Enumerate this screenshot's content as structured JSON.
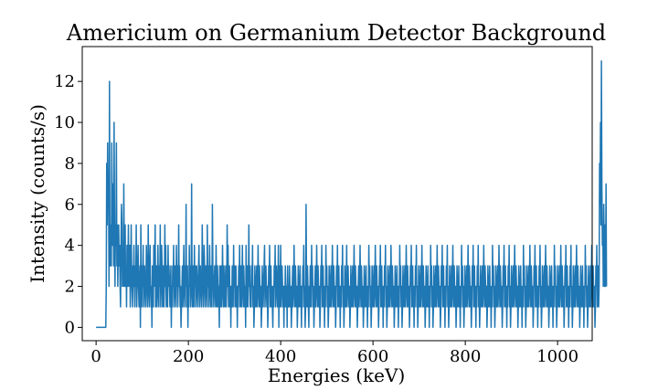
{
  "chart_data": {
    "type": "line",
    "title": "Americium on Germanium Detector Background",
    "xlabel": "Energies (keV)",
    "ylabel": "Intensity (counts/s)",
    "xlim": [
      -30,
      1075
    ],
    "ylim": [
      -0.65,
      13.7
    ],
    "xticks": [
      0,
      200,
      400,
      600,
      800,
      1000
    ],
    "yticks": [
      0,
      2,
      4,
      6,
      8,
      10,
      12
    ],
    "xtick_labels": [
      "0",
      "200",
      "400",
      "600",
      "800",
      "1000"
    ],
    "ytick_labels": [
      "0",
      "2",
      "4",
      "6",
      "8",
      "10",
      "12"
    ],
    "grid": false,
    "series": [
      {
        "color": "#1f77b4",
        "x_start": 0,
        "x_step": 1,
        "values": [
          0,
          0,
          0,
          0,
          0,
          0,
          0,
          0,
          0,
          0,
          0,
          0,
          0,
          0,
          0,
          0,
          0,
          0,
          0,
          0,
          0,
          0,
          2,
          8,
          5,
          9,
          6,
          7,
          2,
          12,
          3,
          5,
          4,
          3,
          9,
          5,
          4,
          7,
          3,
          10,
          5,
          2,
          5,
          4,
          9,
          3,
          5,
          2,
          4,
          5,
          3,
          4,
          2,
          1,
          4,
          6,
          5,
          2,
          3,
          2,
          7,
          4,
          2,
          5,
          2,
          3,
          1,
          4,
          2,
          3,
          5,
          2,
          3,
          4,
          1,
          2,
          5,
          3,
          2,
          1,
          3,
          2,
          4,
          2,
          1,
          3,
          2,
          5,
          1,
          2,
          3,
          4,
          2,
          1,
          2,
          3,
          0,
          5,
          2,
          1,
          3,
          2,
          4,
          1,
          2,
          3,
          2,
          1,
          2,
          4,
          3,
          1,
          2,
          5,
          2,
          1,
          3,
          4,
          2,
          1,
          2,
          0,
          3,
          2,
          1,
          4,
          2,
          3,
          5,
          1,
          2,
          3,
          1,
          2,
          4,
          2,
          1,
          3,
          2,
          5,
          1,
          2,
          4,
          3,
          1,
          2,
          3,
          1,
          2,
          5,
          2,
          4,
          1,
          3,
          2,
          1,
          4,
          2,
          3,
          2,
          1,
          2,
          3,
          0,
          2,
          1,
          3,
          2,
          4,
          1,
          2,
          3,
          2,
          1,
          4,
          2,
          3,
          1,
          2,
          5,
          2,
          3,
          1,
          2,
          0,
          1,
          2,
          3,
          1,
          2,
          4,
          2,
          1,
          3,
          2,
          6,
          1,
          2,
          3,
          0,
          2,
          1,
          4,
          2,
          3,
          1,
          2,
          7,
          2,
          1,
          3,
          2,
          1,
          4,
          2,
          3,
          1,
          2,
          3,
          2,
          1,
          2,
          3,
          4,
          1,
          2,
          3,
          2,
          1,
          2,
          5,
          3,
          1,
          2,
          4,
          3,
          1,
          2,
          3,
          2,
          1,
          5,
          2,
          3,
          1,
          2,
          4,
          2,
          1,
          3,
          2,
          1,
          6,
          3,
          2,
          1,
          2,
          3,
          2,
          1,
          4,
          2,
          1,
          3,
          2,
          1,
          2,
          0,
          3,
          1,
          2,
          3,
          1,
          2,
          4,
          2,
          1,
          3,
          2,
          1,
          2,
          3,
          1,
          2,
          5,
          2,
          4,
          1,
          2,
          3,
          1,
          2,
          0,
          2,
          1,
          3,
          2,
          1,
          4,
          2,
          3,
          1,
          2,
          3,
          1,
          2,
          0,
          2,
          1,
          3,
          2,
          4,
          1,
          2,
          3,
          1,
          2,
          4,
          2,
          1,
          3,
          2,
          1,
          2,
          0,
          4,
          1,
          2,
          3,
          1,
          2,
          5,
          2,
          3,
          1,
          2,
          1,
          3,
          2,
          4,
          1,
          2,
          0,
          1,
          3,
          2,
          1,
          2,
          3,
          1,
          2,
          4,
          2,
          1,
          3,
          2,
          1,
          2,
          0,
          1,
          3,
          2,
          1,
          2,
          3,
          4,
          1,
          2,
          3,
          2,
          1,
          2,
          0,
          1,
          3,
          2,
          4,
          1,
          2,
          3,
          1,
          2,
          1,
          0,
          2,
          1,
          3,
          2,
          4,
          1,
          2,
          3,
          2,
          1,
          2,
          4,
          0,
          3,
          1,
          2,
          4,
          1,
          2,
          3,
          2,
          1,
          2,
          0,
          2,
          1,
          3,
          2,
          1,
          2,
          0,
          3,
          1,
          2,
          1,
          3,
          2,
          1,
          2,
          0,
          1,
          2,
          3,
          1,
          2,
          4,
          2,
          1,
          3,
          2,
          1,
          2,
          0,
          1,
          3,
          2,
          1,
          2,
          3,
          1,
          2,
          0,
          2,
          1,
          3,
          2,
          4,
          1,
          2,
          0,
          1,
          6,
          2,
          1,
          3,
          2,
          1,
          0,
          2,
          1,
          3,
          2,
          1,
          4,
          2,
          3,
          1,
          2,
          0,
          1,
          2,
          3,
          1,
          2,
          4,
          2,
          1,
          3,
          2,
          1,
          2,
          0,
          1,
          3,
          2,
          4,
          1,
          2,
          3,
          1,
          2,
          0,
          2,
          1,
          4,
          2,
          3,
          1,
          2,
          0,
          1,
          3,
          2,
          1,
          2,
          3,
          1,
          2,
          4,
          2,
          1,
          3,
          2,
          1,
          2,
          0,
          1,
          3,
          2,
          4,
          1,
          2,
          3,
          1,
          2,
          0,
          2,
          1,
          3,
          2,
          4,
          1,
          2,
          0,
          1,
          3,
          2,
          1,
          2,
          4,
          1,
          2,
          3,
          2,
          1,
          2,
          0,
          1,
          3,
          2,
          1,
          2,
          3,
          1,
          2,
          4,
          2,
          1,
          3,
          2,
          1,
          2,
          0,
          1,
          2,
          3,
          1,
          2,
          4,
          2,
          1,
          3,
          2,
          1,
          2,
          0,
          1,
          3,
          2,
          1,
          2,
          3,
          1,
          2,
          0,
          2,
          1,
          4,
          2,
          3,
          1,
          2,
          0,
          1,
          3,
          2,
          1,
          2,
          3,
          1,
          2,
          4,
          2,
          1,
          3,
          2,
          1,
          2,
          0,
          1,
          3,
          2,
          4,
          1,
          2,
          3,
          1,
          2,
          0,
          2,
          1,
          3,
          2,
          4,
          1,
          2,
          0,
          1,
          3,
          2,
          1,
          2,
          3,
          1,
          2,
          4,
          2,
          1,
          3,
          2,
          1,
          2,
          0,
          1,
          3,
          2,
          1,
          2,
          3,
          1,
          2,
          0,
          2,
          1,
          4,
          2,
          3,
          1,
          2,
          0,
          1,
          3,
          2,
          1,
          2,
          3,
          1,
          2,
          4,
          2,
          1,
          3,
          2,
          1,
          2,
          0,
          1,
          3,
          2,
          4,
          1,
          2,
          3,
          1,
          2,
          0,
          2,
          1,
          3,
          2,
          4,
          1,
          2,
          0,
          1,
          3,
          2,
          1,
          2,
          3,
          1,
          2,
          4,
          2,
          1,
          3,
          2,
          1,
          2,
          0,
          1,
          3,
          2,
          1,
          2,
          3,
          1,
          2,
          0,
          2,
          1,
          4,
          2,
          3,
          1,
          2,
          0,
          1,
          3,
          2,
          1,
          2,
          3,
          1,
          2,
          4,
          2,
          1,
          3,
          2,
          1,
          2,
          0,
          1,
          3,
          2,
          4,
          1,
          2,
          3,
          1,
          2,
          0,
          2,
          1,
          3,
          2,
          4,
          1,
          2,
          0,
          1,
          3,
          2,
          1,
          2,
          3,
          1,
          2,
          4,
          2,
          1,
          3,
          2,
          1,
          2,
          0,
          1,
          3,
          2,
          1,
          2,
          3,
          1,
          2,
          0,
          2,
          1,
          4,
          2,
          3,
          1,
          2,
          0,
          1,
          3,
          2,
          1,
          2,
          3,
          1,
          2,
          4,
          2,
          1,
          3,
          2,
          1,
          2,
          0,
          1,
          3,
          2,
          4,
          1,
          2,
          3,
          1,
          2,
          0,
          2,
          1,
          3,
          2,
          4,
          1,
          2,
          0,
          1,
          3,
          2,
          1,
          2,
          3,
          1,
          2,
          4,
          2,
          1,
          3,
          2,
          1,
          2,
          0,
          1,
          3,
          2,
          1,
          2,
          3,
          1,
          2,
          0,
          2,
          1,
          4,
          2,
          3,
          1,
          2,
          0,
          1,
          3,
          2,
          1,
          2,
          3,
          1,
          2,
          4,
          2,
          1,
          3,
          2,
          1,
          2,
          0,
          1,
          3,
          2,
          4,
          1,
          2,
          3,
          1,
          2,
          0,
          2,
          1,
          3,
          2,
          4,
          1,
          2,
          0,
          1,
          3,
          2,
          1,
          2,
          3,
          1,
          2,
          4,
          2,
          1,
          3,
          2,
          1,
          2,
          0,
          1,
          3,
          2,
          1,
          2,
          3,
          1,
          2,
          0,
          2,
          1,
          4,
          2,
          3,
          1,
          2,
          0,
          1,
          3,
          2,
          1,
          2,
          3,
          1,
          2,
          4,
          2,
          1,
          3,
          2,
          1,
          2,
          0,
          1,
          3,
          2,
          4,
          1,
          2,
          3,
          1,
          2,
          0,
          2,
          1,
          3,
          2,
          4,
          1,
          2,
          0,
          1,
          3,
          2,
          1,
          2,
          3,
          1,
          2,
          4,
          2,
          1,
          3,
          2,
          1,
          2,
          0,
          1,
          3,
          2,
          1,
          2,
          3,
          1,
          2,
          0,
          2,
          1,
          4,
          2,
          3,
          1,
          2,
          0,
          1,
          3,
          2,
          1,
          2,
          3,
          1,
          2,
          4,
          2,
          1,
          3,
          2,
          1,
          2,
          0,
          1,
          3,
          2,
          4,
          1,
          2,
          3,
          1,
          2,
          0,
          2,
          1,
          3,
          2,
          4,
          1,
          2,
          0,
          1,
          3,
          2,
          1,
          2,
          3,
          1,
          2,
          4,
          2,
          1,
          3,
          2,
          1,
          2,
          0,
          1,
          3,
          2,
          1,
          2,
          3,
          1,
          2,
          0,
          2,
          1,
          4,
          2,
          3,
          1,
          2,
          0,
          1,
          3,
          2,
          1,
          2,
          3,
          1,
          2,
          4,
          2,
          1,
          3,
          2,
          1,
          2,
          0,
          1,
          3,
          2,
          4,
          1,
          2,
          3,
          1,
          2,
          8,
          6,
          10,
          5,
          13,
          7,
          4,
          5,
          2,
          6,
          4,
          2,
          5,
          2,
          7,
          2
        ]
      }
    ]
  }
}
